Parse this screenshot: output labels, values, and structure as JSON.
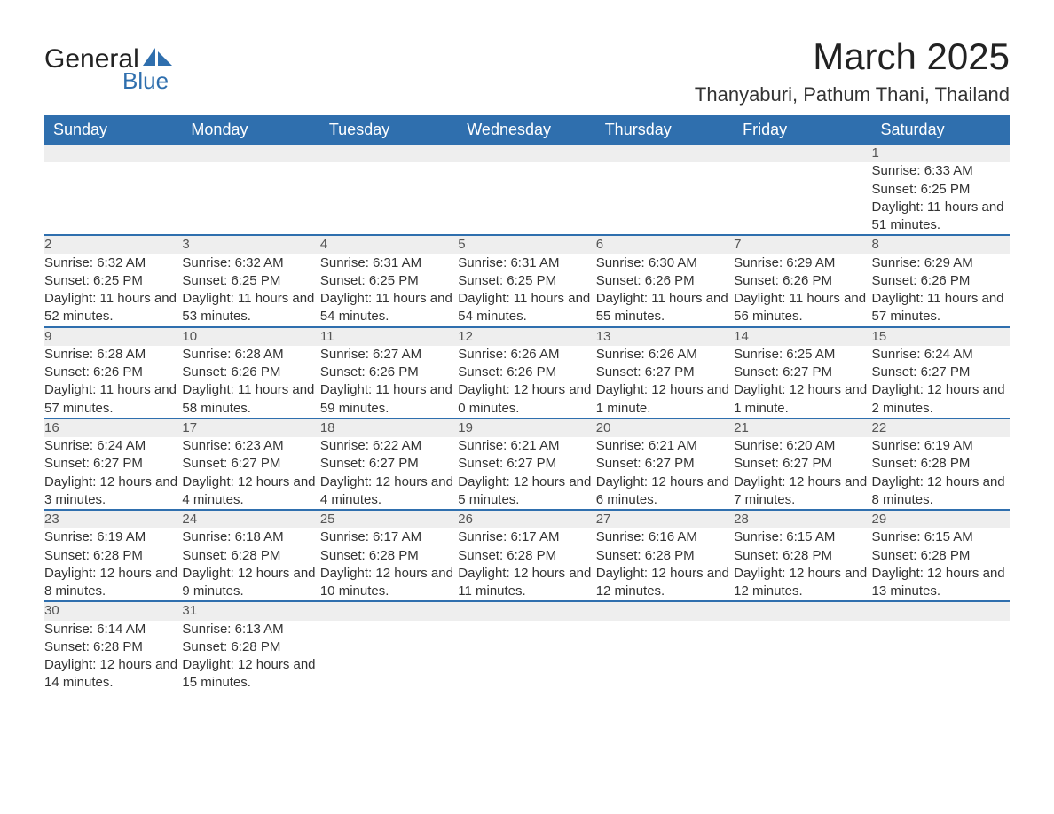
{
  "logo": {
    "line1": "General",
    "line2": "Blue",
    "shape_color": "#2f6fae"
  },
  "title": "March 2025",
  "location": "Thanyaburi, Pathum Thani, Thailand",
  "colors": {
    "header_bg": "#2f6fae",
    "header_text": "#ffffff",
    "daynum_bg": "#eeeeee",
    "row_border": "#2f6fae",
    "body_text": "#333333"
  },
  "weekdays": [
    "Sunday",
    "Monday",
    "Tuesday",
    "Wednesday",
    "Thursday",
    "Friday",
    "Saturday"
  ],
  "weeks": [
    [
      null,
      null,
      null,
      null,
      null,
      null,
      {
        "n": "1",
        "sr": "6:33 AM",
        "ss": "6:25 PM",
        "dl": "11 hours and 51 minutes."
      }
    ],
    [
      {
        "n": "2",
        "sr": "6:32 AM",
        "ss": "6:25 PM",
        "dl": "11 hours and 52 minutes."
      },
      {
        "n": "3",
        "sr": "6:32 AM",
        "ss": "6:25 PM",
        "dl": "11 hours and 53 minutes."
      },
      {
        "n": "4",
        "sr": "6:31 AM",
        "ss": "6:25 PM",
        "dl": "11 hours and 54 minutes."
      },
      {
        "n": "5",
        "sr": "6:31 AM",
        "ss": "6:25 PM",
        "dl": "11 hours and 54 minutes."
      },
      {
        "n": "6",
        "sr": "6:30 AM",
        "ss": "6:26 PM",
        "dl": "11 hours and 55 minutes."
      },
      {
        "n": "7",
        "sr": "6:29 AM",
        "ss": "6:26 PM",
        "dl": "11 hours and 56 minutes."
      },
      {
        "n": "8",
        "sr": "6:29 AM",
        "ss": "6:26 PM",
        "dl": "11 hours and 57 minutes."
      }
    ],
    [
      {
        "n": "9",
        "sr": "6:28 AM",
        "ss": "6:26 PM",
        "dl": "11 hours and 57 minutes."
      },
      {
        "n": "10",
        "sr": "6:28 AM",
        "ss": "6:26 PM",
        "dl": "11 hours and 58 minutes."
      },
      {
        "n": "11",
        "sr": "6:27 AM",
        "ss": "6:26 PM",
        "dl": "11 hours and 59 minutes."
      },
      {
        "n": "12",
        "sr": "6:26 AM",
        "ss": "6:26 PM",
        "dl": "12 hours and 0 minutes."
      },
      {
        "n": "13",
        "sr": "6:26 AM",
        "ss": "6:27 PM",
        "dl": "12 hours and 1 minute."
      },
      {
        "n": "14",
        "sr": "6:25 AM",
        "ss": "6:27 PM",
        "dl": "12 hours and 1 minute."
      },
      {
        "n": "15",
        "sr": "6:24 AM",
        "ss": "6:27 PM",
        "dl": "12 hours and 2 minutes."
      }
    ],
    [
      {
        "n": "16",
        "sr": "6:24 AM",
        "ss": "6:27 PM",
        "dl": "12 hours and 3 minutes."
      },
      {
        "n": "17",
        "sr": "6:23 AM",
        "ss": "6:27 PM",
        "dl": "12 hours and 4 minutes."
      },
      {
        "n": "18",
        "sr": "6:22 AM",
        "ss": "6:27 PM",
        "dl": "12 hours and 4 minutes."
      },
      {
        "n": "19",
        "sr": "6:21 AM",
        "ss": "6:27 PM",
        "dl": "12 hours and 5 minutes."
      },
      {
        "n": "20",
        "sr": "6:21 AM",
        "ss": "6:27 PM",
        "dl": "12 hours and 6 minutes."
      },
      {
        "n": "21",
        "sr": "6:20 AM",
        "ss": "6:27 PM",
        "dl": "12 hours and 7 minutes."
      },
      {
        "n": "22",
        "sr": "6:19 AM",
        "ss": "6:28 PM",
        "dl": "12 hours and 8 minutes."
      }
    ],
    [
      {
        "n": "23",
        "sr": "6:19 AM",
        "ss": "6:28 PM",
        "dl": "12 hours and 8 minutes."
      },
      {
        "n": "24",
        "sr": "6:18 AM",
        "ss": "6:28 PM",
        "dl": "12 hours and 9 minutes."
      },
      {
        "n": "25",
        "sr": "6:17 AM",
        "ss": "6:28 PM",
        "dl": "12 hours and 10 minutes."
      },
      {
        "n": "26",
        "sr": "6:17 AM",
        "ss": "6:28 PM",
        "dl": "12 hours and 11 minutes."
      },
      {
        "n": "27",
        "sr": "6:16 AM",
        "ss": "6:28 PM",
        "dl": "12 hours and 12 minutes."
      },
      {
        "n": "28",
        "sr": "6:15 AM",
        "ss": "6:28 PM",
        "dl": "12 hours and 12 minutes."
      },
      {
        "n": "29",
        "sr": "6:15 AM",
        "ss": "6:28 PM",
        "dl": "12 hours and 13 minutes."
      }
    ],
    [
      {
        "n": "30",
        "sr": "6:14 AM",
        "ss": "6:28 PM",
        "dl": "12 hours and 14 minutes."
      },
      {
        "n": "31",
        "sr": "6:13 AM",
        "ss": "6:28 PM",
        "dl": "12 hours and 15 minutes."
      },
      null,
      null,
      null,
      null,
      null
    ]
  ],
  "labels": {
    "sunrise": "Sunrise: ",
    "sunset": "Sunset: ",
    "daylight": "Daylight: "
  }
}
